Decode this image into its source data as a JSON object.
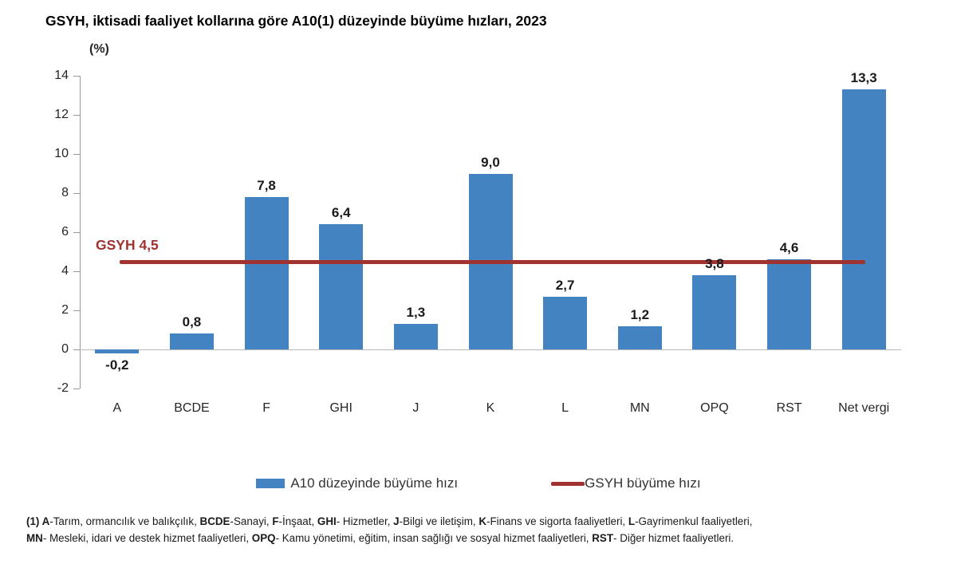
{
  "chart_data": {
    "type": "bar",
    "title": "GSYH, iktisadi faaliyet kollarına göre A10(1) düzeyinde büyüme hızları, 2023",
    "unit_label": "(%)",
    "categories": [
      "A",
      "BCDE",
      "F",
      "GHI",
      "J",
      "K",
      "L",
      "MN",
      "OPQ",
      "RST",
      "Net vergi"
    ],
    "values": [
      -0.2,
      0.8,
      7.8,
      6.4,
      1.3,
      9.0,
      2.7,
      1.2,
      3.8,
      4.6,
      13.3
    ],
    "value_labels": [
      "-0,2",
      "0,8",
      "7,8",
      "6,4",
      "1,3",
      "9,0",
      "2,7",
      "1,2",
      "3,8",
      "4,6",
      "13,3"
    ],
    "ylim": [
      -2,
      14
    ],
    "yticks": [
      14,
      12,
      10,
      8,
      6,
      4,
      2,
      0,
      -2
    ],
    "grid": false,
    "bar_color": "#4383c1",
    "axis_color": "#999999",
    "baseline_color": "#bbbbbb",
    "reference_line": {
      "value": 4.5,
      "label": "GSYH 4,5",
      "color": "#a03230"
    },
    "legend_position": "bottom",
    "legend": [
      {
        "label": "A10 düzeyinde büyüme hızı",
        "swatch": "bar",
        "color": "#4383c1"
      },
      {
        "label": "GSYH büyüme hızı",
        "swatch": "line",
        "color": "#a03230"
      }
    ]
  },
  "footnote": {
    "lines": [
      {
        "segments": [
          {
            "text": "(1) A",
            "bold": true
          },
          {
            "text": "-Tarım, ormancılık ve balıkçılık, ",
            "bold": false
          },
          {
            "text": "BCDE",
            "bold": true
          },
          {
            "text": "-Sanayi, ",
            "bold": false
          },
          {
            "text": "F",
            "bold": true
          },
          {
            "text": "-İnşaat, ",
            "bold": false
          },
          {
            "text": "GHI",
            "bold": true
          },
          {
            "text": "- Hizmetler, ",
            "bold": false
          },
          {
            "text": "J",
            "bold": true
          },
          {
            "text": "-Bilgi ve iletişim, ",
            "bold": false
          },
          {
            "text": "K",
            "bold": true
          },
          {
            "text": "-Finans ve sigorta faaliyetleri, ",
            "bold": false
          },
          {
            "text": "L",
            "bold": true
          },
          {
            "text": "-Gayrimenkul faaliyetleri,",
            "bold": false
          }
        ]
      },
      {
        "segments": [
          {
            "text": "MN",
            "bold": true
          },
          {
            "text": "- Mesleki, idari ve destek hizmet faaliyetleri, ",
            "bold": false
          },
          {
            "text": "OPQ",
            "bold": true
          },
          {
            "text": "- Kamu yönetimi, eğitim, insan sağlığı ve sosyal hizmet faaliyetleri, ",
            "bold": false
          },
          {
            "text": "RST",
            "bold": true
          },
          {
            "text": "- Diğer hizmet faaliyetleri.",
            "bold": false
          }
        ]
      }
    ]
  }
}
